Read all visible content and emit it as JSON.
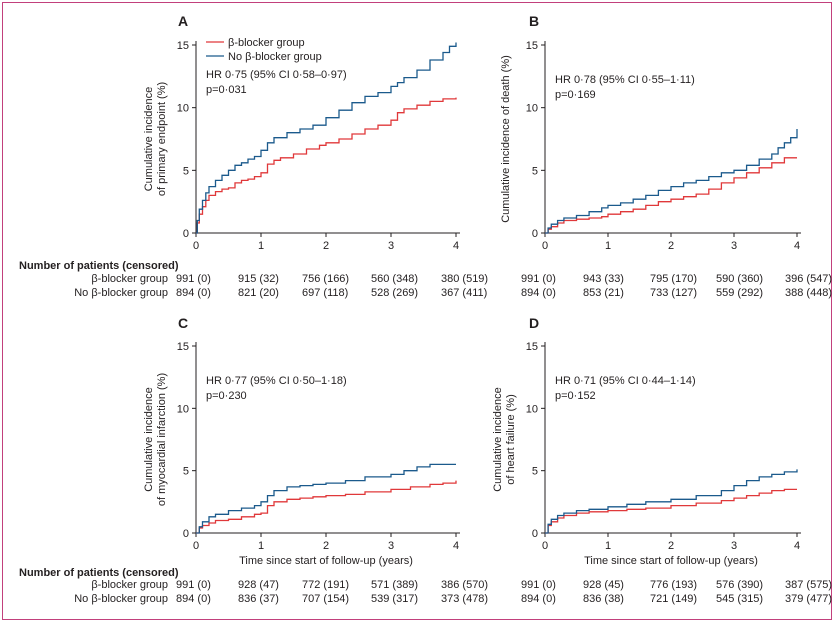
{
  "colors": {
    "frame": "#c2407c",
    "beta": "#e0383a",
    "nobeta": "#1b5a8c",
    "axis": "#231f20"
  },
  "table_header": "Number of patients (censored)",
  "xaxis_title": "Time since start of follow-up (years)",
  "chart_data": [
    {
      "id": "A",
      "type": "line",
      "letter": "A",
      "ylabel": [
        "Cumulative incidence",
        "of primary endpoint (%)"
      ],
      "ylim": [
        0,
        15
      ],
      "yticks": [
        0,
        5,
        10,
        15
      ],
      "xlim": [
        0,
        4
      ],
      "xticks": [
        0,
        1,
        2,
        3,
        4
      ],
      "show_xlabel": false,
      "legend": [
        "β-blocker group",
        "No β-blocker group"
      ],
      "annotation": [
        "HR 0·75 (95% CI 0·58–0·97)",
        "p=0·031"
      ],
      "series": [
        {
          "name": "β-blocker group",
          "x": [
            0,
            0.02,
            0.05,
            0.1,
            0.15,
            0.2,
            0.3,
            0.4,
            0.5,
            0.6,
            0.7,
            0.8,
            0.9,
            1.0,
            1.1,
            1.2,
            1.3,
            1.5,
            1.7,
            1.9,
            2.0,
            2.2,
            2.4,
            2.6,
            2.8,
            3.0,
            3.1,
            3.2,
            3.4,
            3.6,
            3.8,
            4.0
          ],
          "y": [
            0,
            0.8,
            1.5,
            2.1,
            2.6,
            3.0,
            3.3,
            3.5,
            3.6,
            4.0,
            4.2,
            4.3,
            4.5,
            4.8,
            5.5,
            5.8,
            6.0,
            6.3,
            6.7,
            7.0,
            7.2,
            7.5,
            7.9,
            8.3,
            8.6,
            9.0,
            9.6,
            9.9,
            10.2,
            10.5,
            10.7,
            10.8
          ]
        },
        {
          "name": "No β-blocker group",
          "x": [
            0,
            0.02,
            0.05,
            0.1,
            0.15,
            0.2,
            0.3,
            0.4,
            0.5,
            0.6,
            0.7,
            0.8,
            0.9,
            1.0,
            1.1,
            1.2,
            1.4,
            1.6,
            1.8,
            2.0,
            2.2,
            2.4,
            2.6,
            2.8,
            3.0,
            3.1,
            3.2,
            3.4,
            3.6,
            3.8,
            3.9,
            4.0
          ],
          "y": [
            0,
            1.0,
            1.9,
            2.6,
            3.2,
            3.7,
            4.2,
            4.6,
            5.0,
            5.4,
            5.6,
            5.9,
            6.1,
            6.6,
            7.2,
            7.6,
            8.0,
            8.3,
            8.6,
            9.2,
            9.8,
            10.4,
            10.9,
            11.2,
            11.7,
            12.0,
            12.4,
            13.0,
            13.8,
            14.4,
            14.9,
            15.2
          ]
        }
      ],
      "table": {
        "rows": [
          {
            "label": "β-blocker group",
            "values": [
              "991 (0)",
              "915 (32)",
              "756 (166)",
              "560 (348)",
              "380 (519)"
            ]
          },
          {
            "label": "No β-blocker group",
            "values": [
              "894 (0)",
              "821 (20)",
              "697 (118)",
              "528 (269)",
              "367 (411)"
            ]
          }
        ]
      }
    },
    {
      "id": "B",
      "type": "line",
      "letter": "B",
      "ylabel": [
        "Cumulative incidence of death (%)"
      ],
      "ylim": [
        0,
        15
      ],
      "yticks": [
        0,
        5,
        10,
        15
      ],
      "xlim": [
        0,
        4
      ],
      "xticks": [
        0,
        1,
        2,
        3,
        4
      ],
      "show_xlabel": false,
      "annotation": [
        "HR 0·78 (95% CI 0·55–1·11)",
        "p=0·169"
      ],
      "series": [
        {
          "name": "β-blocker group",
          "x": [
            0,
            0.05,
            0.1,
            0.2,
            0.3,
            0.5,
            0.7,
            0.9,
            1.0,
            1.2,
            1.4,
            1.6,
            1.8,
            2.0,
            2.2,
            2.4,
            2.6,
            2.8,
            3.0,
            3.2,
            3.4,
            3.6,
            3.8,
            4.0
          ],
          "y": [
            0,
            0.3,
            0.5,
            0.8,
            1.0,
            1.1,
            1.2,
            1.3,
            1.5,
            1.7,
            1.9,
            2.2,
            2.5,
            2.7,
            2.9,
            3.1,
            3.5,
            4.0,
            4.4,
            4.8,
            5.2,
            5.6,
            6.0,
            6.0
          ]
        },
        {
          "name": "No β-blocker group",
          "x": [
            0,
            0.05,
            0.1,
            0.2,
            0.3,
            0.5,
            0.7,
            0.9,
            1.0,
            1.2,
            1.4,
            1.6,
            1.8,
            2.0,
            2.2,
            2.4,
            2.6,
            2.8,
            3.0,
            3.2,
            3.4,
            3.6,
            3.7,
            3.8,
            3.9,
            4.0
          ],
          "y": [
            0,
            0.4,
            0.7,
            1.0,
            1.2,
            1.4,
            1.7,
            2.0,
            2.2,
            2.4,
            2.7,
            3.0,
            3.4,
            3.7,
            4.0,
            4.2,
            4.5,
            4.8,
            5.0,
            5.4,
            5.9,
            6.3,
            6.8,
            7.2,
            7.6,
            8.3
          ]
        }
      ],
      "table": {
        "rows": [
          {
            "label": "",
            "values": [
              "991 (0)",
              "943 (33)",
              "795 (170)",
              "590 (360)",
              "396 (547)"
            ]
          },
          {
            "label": "",
            "values": [
              "894 (0)",
              "853 (21)",
              "733 (127)",
              "559 (292)",
              "388 (448)"
            ]
          }
        ]
      }
    },
    {
      "id": "C",
      "type": "line",
      "letter": "C",
      "ylabel": [
        "Cumulative incidence",
        "of myocardial infarction (%)"
      ],
      "ylim": [
        0,
        15
      ],
      "yticks": [
        0,
        5,
        10,
        15
      ],
      "xlim": [
        0,
        4
      ],
      "xticks": [
        0,
        1,
        2,
        3,
        4
      ],
      "show_xlabel": true,
      "annotation": [
        "HR 0·77 (95% CI 0·50–1·18)",
        "p=0·230"
      ],
      "series": [
        {
          "name": "β-blocker group",
          "x": [
            0,
            0.05,
            0.1,
            0.2,
            0.3,
            0.5,
            0.7,
            0.9,
            1.0,
            1.1,
            1.2,
            1.4,
            1.6,
            1.8,
            2.0,
            2.3,
            2.6,
            3.0,
            3.3,
            3.6,
            3.8,
            4.0
          ],
          "y": [
            0,
            0.4,
            0.6,
            0.8,
            1.0,
            1.1,
            1.3,
            1.5,
            1.6,
            2.2,
            2.5,
            2.7,
            2.8,
            2.9,
            3.0,
            3.1,
            3.3,
            3.5,
            3.7,
            3.9,
            4.0,
            4.2
          ]
        },
        {
          "name": "No β-blocker group",
          "x": [
            0,
            0.05,
            0.1,
            0.2,
            0.3,
            0.5,
            0.7,
            0.9,
            1.0,
            1.1,
            1.2,
            1.4,
            1.6,
            1.8,
            2.0,
            2.3,
            2.6,
            3.0,
            3.2,
            3.4,
            3.6,
            4.0
          ],
          "y": [
            0,
            0.5,
            0.9,
            1.3,
            1.5,
            1.8,
            2.0,
            2.2,
            2.5,
            3.0,
            3.4,
            3.7,
            3.8,
            3.9,
            4.0,
            4.2,
            4.5,
            4.7,
            5.0,
            5.3,
            5.5,
            5.5
          ]
        }
      ],
      "table": {
        "rows": [
          {
            "label": "β-blocker group",
            "values": [
              "991 (0)",
              "928 (47)",
              "772 (191)",
              "571 (389)",
              "386 (570)"
            ]
          },
          {
            "label": "No β-blocker group",
            "values": [
              "894 (0)",
              "836 (37)",
              "707 (154)",
              "539 (317)",
              "373 (478)"
            ]
          }
        ]
      }
    },
    {
      "id": "D",
      "type": "line",
      "letter": "D",
      "ylabel": [
        "Cumulative incidence",
        "of heart failure (%)"
      ],
      "ylim": [
        0,
        15
      ],
      "yticks": [
        0,
        5,
        10,
        15
      ],
      "xlim": [
        0,
        4
      ],
      "xticks": [
        0,
        1,
        2,
        3,
        4
      ],
      "show_xlabel": true,
      "annotation": [
        "HR 0·71 (95% CI 0·44–1·14)",
        "p=0·152"
      ],
      "series": [
        {
          "name": "β-blocker group",
          "x": [
            0,
            0.05,
            0.1,
            0.2,
            0.3,
            0.5,
            0.7,
            1.0,
            1.3,
            1.6,
            2.0,
            2.4,
            2.8,
            3.0,
            3.2,
            3.4,
            3.6,
            3.8,
            4.0
          ],
          "y": [
            0,
            0.6,
            0.9,
            1.2,
            1.4,
            1.6,
            1.7,
            1.8,
            1.9,
            2.0,
            2.2,
            2.4,
            2.6,
            2.8,
            3.0,
            3.2,
            3.4,
            3.5,
            3.5
          ]
        },
        {
          "name": "No β-blocker group",
          "x": [
            0,
            0.05,
            0.1,
            0.2,
            0.3,
            0.5,
            0.7,
            1.0,
            1.3,
            1.6,
            2.0,
            2.4,
            2.8,
            3.0,
            3.2,
            3.4,
            3.6,
            3.8,
            4.0
          ],
          "y": [
            0,
            0.7,
            1.1,
            1.4,
            1.6,
            1.8,
            1.9,
            2.1,
            2.3,
            2.5,
            2.7,
            3.0,
            3.4,
            3.8,
            4.2,
            4.5,
            4.7,
            4.9,
            5.1
          ]
        }
      ],
      "table": {
        "rows": [
          {
            "label": "",
            "values": [
              "991 (0)",
              "928 (45)",
              "776 (193)",
              "576 (390)",
              "387 (575)"
            ]
          },
          {
            "label": "",
            "values": [
              "894 (0)",
              "836 (38)",
              "721 (149)",
              "545 (315)",
              "379 (477)"
            ]
          }
        ]
      }
    }
  ]
}
